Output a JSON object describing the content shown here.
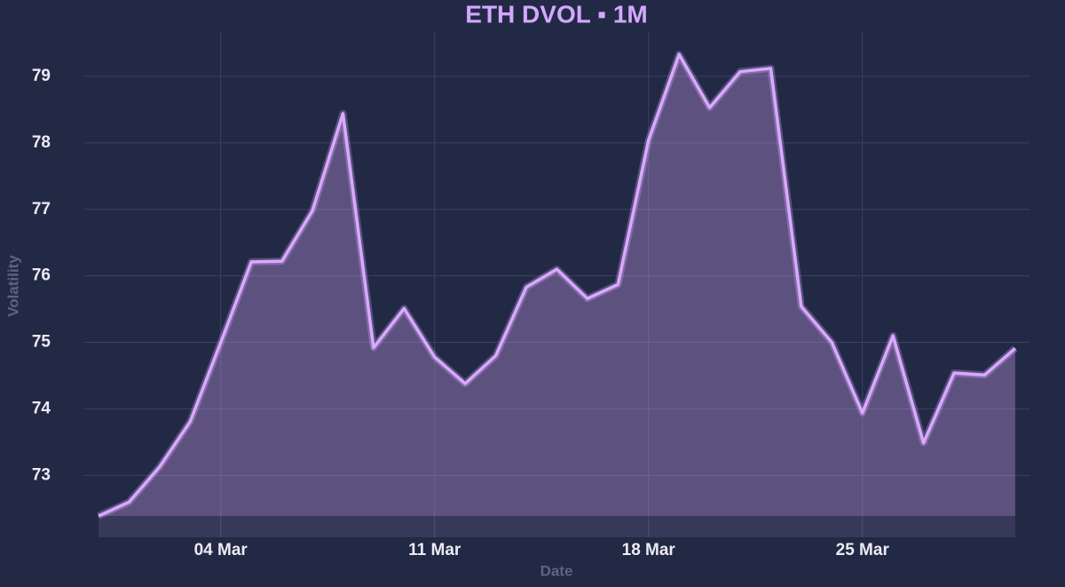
{
  "chart_data": {
    "type": "area",
    "title": "ETH DVOL ▪ 1M",
    "xlabel": "Date",
    "ylabel": "Volatility",
    "categories": [
      null,
      null,
      null,
      null,
      "04 Mar",
      null,
      null,
      null,
      null,
      null,
      null,
      "11 Mar",
      null,
      null,
      null,
      null,
      null,
      null,
      "18 Mar",
      null,
      null,
      null,
      null,
      null,
      null,
      "25 Mar",
      null,
      null,
      null,
      null,
      null
    ],
    "series": [
      {
        "name": "ETH DVOL",
        "color": "#d9a9ff",
        "values": [
          72.39,
          72.6,
          73.13,
          73.81,
          75.0,
          76.21,
          76.22,
          76.98,
          78.44,
          74.92,
          75.51,
          74.78,
          74.38,
          74.8,
          75.83,
          76.1,
          75.66,
          75.87,
          78.04,
          79.33,
          78.53,
          79.07,
          79.12,
          75.54,
          75.0,
          73.94,
          75.1,
          73.49,
          74.54,
          74.51,
          74.91
        ]
      }
    ],
    "ylim": [
      72.07,
      79.68
    ],
    "yticks": [
      73,
      74,
      75,
      76,
      77,
      78,
      79
    ],
    "grid": true
  }
}
